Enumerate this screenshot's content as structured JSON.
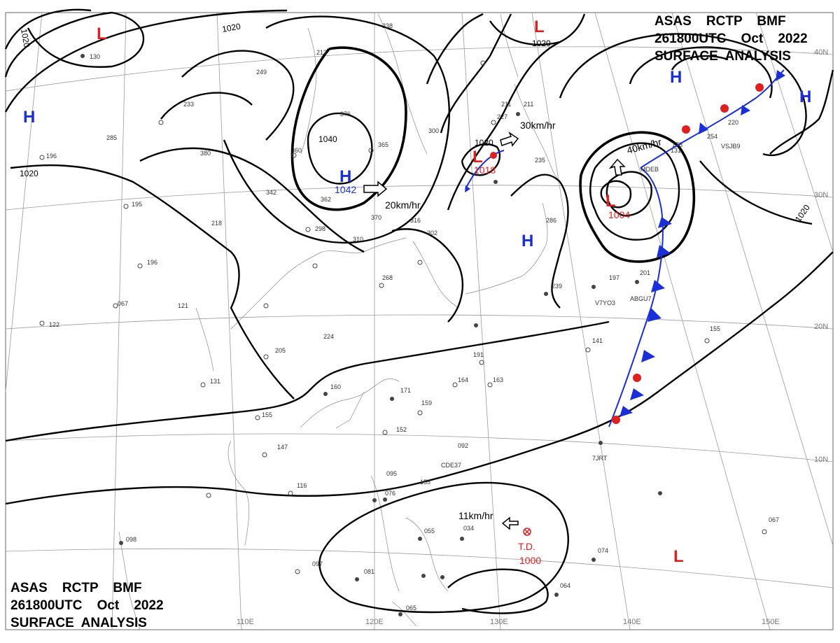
{
  "header": {
    "line1": "ASAS    RCTP    BMF",
    "line2": "261800UTC    Oct    2022",
    "line3": "SURFACE  ANALYSIS"
  },
  "footer": {
    "line1": "ASAS    RCTP    BMF",
    "line2": "261800UTC    Oct    2022",
    "line3": "SURFACE  ANALYSIS"
  },
  "latitudes": [
    "40N",
    "30N",
    "20N",
    "10N"
  ],
  "longitudes": [
    "110E",
    "120E",
    "130E",
    "140E",
    "150E"
  ],
  "isobars": [
    "1020",
    "1020",
    "1020",
    "1040",
    "1020",
    "1020",
    "1020"
  ],
  "highs": [
    {
      "symbol": "H",
      "pressure": "1042"
    },
    {
      "symbol": "H",
      "pressure": ""
    },
    {
      "symbol": "H",
      "pressure": ""
    },
    {
      "symbol": "H",
      "pressure": ""
    },
    {
      "symbol": "H",
      "pressure": ""
    }
  ],
  "lows": [
    {
      "symbol": "L",
      "pressure": ""
    },
    {
      "symbol": "L",
      "pressure": ""
    },
    {
      "symbol": "L",
      "pressure": "1018"
    },
    {
      "symbol": "L",
      "pressure": "1004"
    },
    {
      "symbol": "L",
      "pressure": ""
    }
  ],
  "depression": {
    "label": "T.D.",
    "pressure": "1000"
  },
  "motions": [
    "20km/hr",
    "30km/hr",
    "40km/hr",
    "11km/hr"
  ],
  "colors": {
    "high": "#1a2fd8",
    "low": "#e02020",
    "isobar": "#000000",
    "grid": "#9a9a9a"
  },
  "stations": [
    "130",
    "285",
    "196",
    "380",
    "360",
    "376",
    "365",
    "300",
    "211",
    "227",
    "233",
    "249",
    "213",
    "238",
    "342",
    "362",
    "370",
    "310",
    "298",
    "218",
    "195",
    "196",
    "121",
    "067",
    "122",
    "224",
    "205",
    "131",
    "160",
    "171",
    "159",
    "152",
    "155",
    "147",
    "116",
    "095",
    "076",
    "155",
    "034",
    "055",
    "098",
    "097",
    "081",
    "065",
    "064",
    "074",
    "067",
    "092",
    "164",
    "163",
    "191",
    "268",
    "239",
    "197",
    "201",
    "155",
    "141",
    "178",
    "131",
    "220",
    "254",
    "286",
    "235",
    "211",
    "316",
    "302",
    "CDE37",
    "ABGU7",
    "V7YO3",
    "7JRT",
    "VSJB9",
    "MDEB"
  ]
}
